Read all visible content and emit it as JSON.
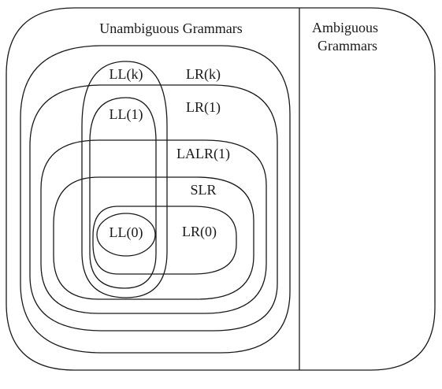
{
  "diagram": {
    "regions": {
      "unambiguous": "Unambiguous Grammars",
      "ambiguous_line1": "Ambiguous",
      "ambiguous_line2": "Grammars"
    },
    "classes": {
      "llk": "LL(k)",
      "lrk": "LR(k)",
      "ll1": "LL(1)",
      "lr1": "LR(1)",
      "lalr1": "LALR(1)",
      "slr": "SLR",
      "ll0": "LL(0)",
      "lr0": "LR(0)"
    }
  }
}
